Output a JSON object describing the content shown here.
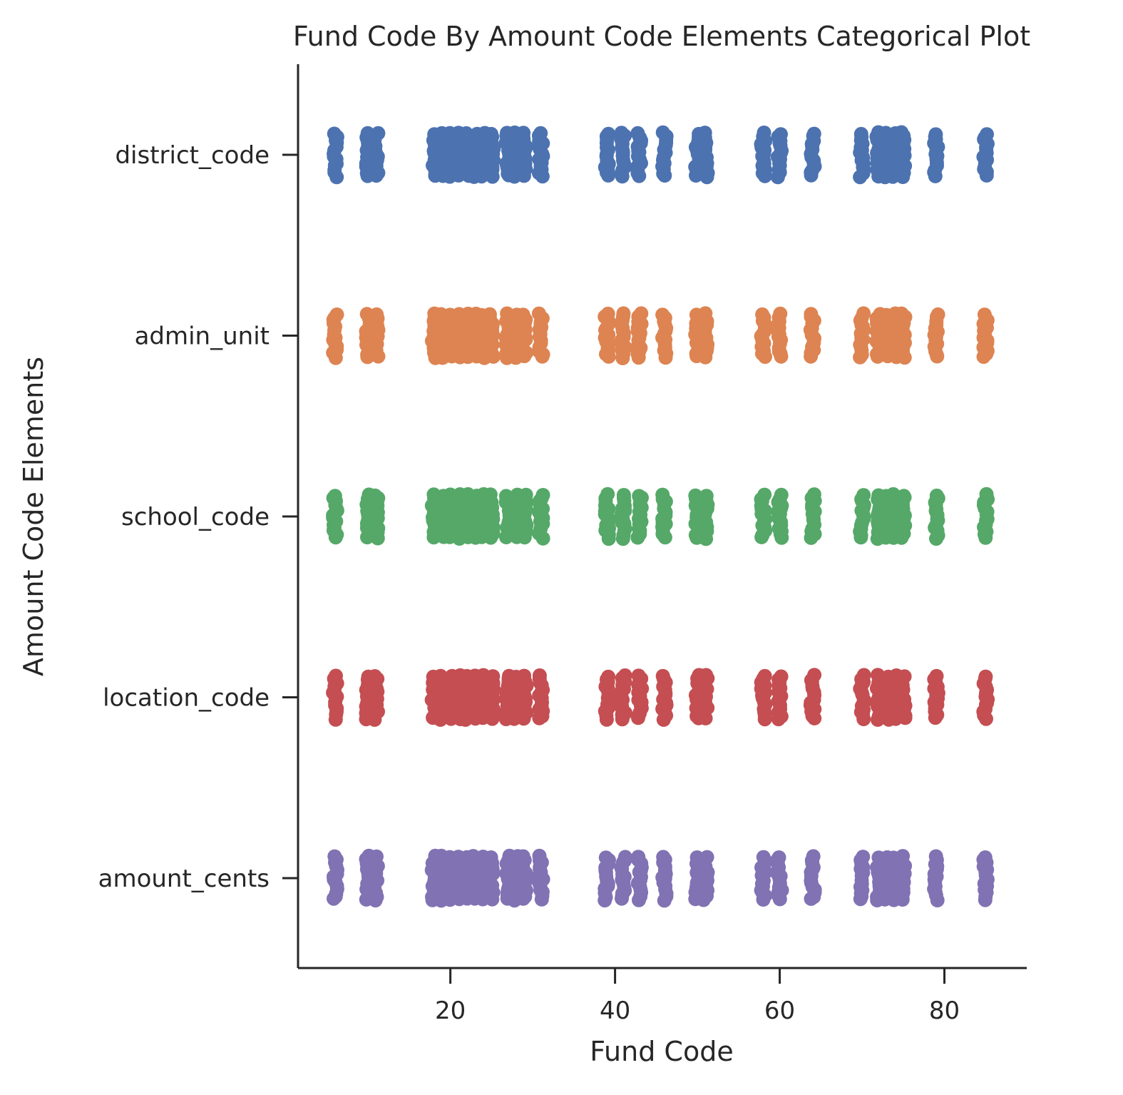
{
  "chart_data": {
    "type": "scatter",
    "subtype": "categorical-strip",
    "title": "Fund Code By Amount Code Elements Categorical Plot",
    "xlabel": "Fund Code",
    "ylabel": "Amount Code Elements",
    "xlim": [
      1.5,
      90
    ],
    "xticks": [
      20,
      40,
      60,
      80
    ],
    "grid": false,
    "legend": "none",
    "categories": [
      "district_code",
      "admin_unit",
      "school_code",
      "location_code",
      "amount_cents"
    ],
    "x": [
      6,
      10,
      11,
      18,
      19,
      20,
      21,
      22,
      23,
      24,
      25,
      27,
      28,
      29,
      31,
      39,
      41,
      43,
      46,
      50,
      51,
      58,
      60,
      64,
      70,
      72,
      73,
      74,
      75,
      79,
      85
    ],
    "series": [
      {
        "name": "district_code",
        "color": "#4c72b0",
        "values": [
          6,
          10,
          11,
          18,
          19,
          20,
          21,
          22,
          23,
          24,
          25,
          27,
          28,
          29,
          31,
          39,
          41,
          43,
          46,
          50,
          51,
          58,
          60,
          64,
          70,
          72,
          73,
          74,
          75,
          79,
          85
        ]
      },
      {
        "name": "admin_unit",
        "color": "#dd8452",
        "values": [
          6,
          10,
          11,
          18,
          19,
          20,
          21,
          22,
          23,
          24,
          25,
          27,
          28,
          29,
          31,
          39,
          41,
          43,
          46,
          50,
          51,
          58,
          60,
          64,
          70,
          72,
          73,
          74,
          75,
          79,
          85
        ]
      },
      {
        "name": "school_code",
        "color": "#55a868",
        "values": [
          6,
          10,
          11,
          18,
          19,
          20,
          21,
          22,
          23,
          24,
          25,
          27,
          28,
          29,
          31,
          39,
          41,
          43,
          46,
          50,
          51,
          58,
          60,
          64,
          70,
          72,
          73,
          74,
          75,
          79,
          85
        ]
      },
      {
        "name": "location_code",
        "color": "#c44e52",
        "values": [
          6,
          10,
          11,
          18,
          19,
          20,
          21,
          22,
          23,
          24,
          25,
          27,
          28,
          29,
          31,
          39,
          41,
          43,
          46,
          50,
          51,
          58,
          60,
          64,
          70,
          72,
          73,
          74,
          75,
          79,
          85
        ]
      },
      {
        "name": "amount_cents",
        "color": "#8172b3",
        "values": [
          6,
          10,
          11,
          18,
          19,
          20,
          21,
          22,
          23,
          24,
          25,
          27,
          28,
          29,
          31,
          39,
          41,
          43,
          46,
          50,
          51,
          58,
          60,
          64,
          70,
          72,
          73,
          74,
          75,
          79,
          85
        ]
      }
    ]
  }
}
